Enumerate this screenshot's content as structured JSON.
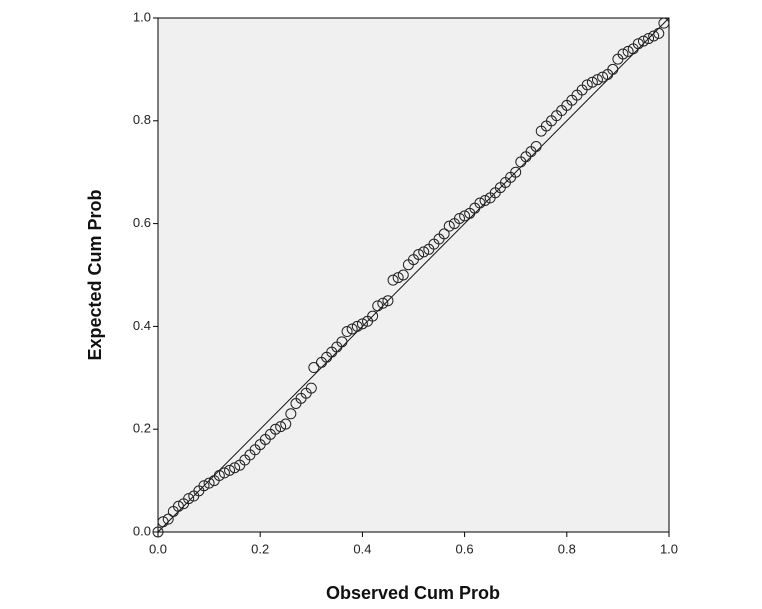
{
  "chart_data": {
    "type": "scatter",
    "x_label": "Observed Cum Prob",
    "y_label": "Expected Cum Prob",
    "xlim": [
      0,
      1
    ],
    "ylim": [
      0,
      1
    ],
    "xticks": [
      {
        "value": 0,
        "label": "0.0"
      },
      0.2,
      0.4,
      0.6,
      0.8,
      {
        "value": 1,
        "label": "1.0"
      }
    ],
    "yticks": [
      {
        "value": 0,
        "label": "0.0"
      },
      0.2,
      0.4,
      0.6,
      0.8,
      {
        "value": 1,
        "label": "1.0"
      }
    ],
    "reference_line": {
      "x": [
        0,
        1
      ],
      "y": [
        0,
        1
      ]
    },
    "x": [
      0,
      0.01,
      0.02,
      0.03,
      0.04,
      0.05,
      0.06,
      0.07,
      0.08,
      0.09,
      0.1,
      0.11,
      0.12,
      0.13,
      0.14,
      0.15,
      0.16,
      0.17,
      0.18,
      0.19,
      0.2,
      0.21,
      0.22,
      0.23,
      0.24,
      0.25,
      0.26,
      0.27,
      0.28,
      0.29,
      0.3,
      0.305,
      0.32,
      0.33,
      0.34,
      0.35,
      0.36,
      0.37,
      0.38,
      0.39,
      0.4,
      0.41,
      0.42,
      0.43,
      0.44,
      0.45,
      0.46,
      0.47,
      0.48,
      0.49,
      0.5,
      0.51,
      0.52,
      0.53,
      0.54,
      0.55,
      0.56,
      0.57,
      0.58,
      0.59,
      0.6,
      0.61,
      0.62,
      0.63,
      0.64,
      0.65,
      0.66,
      0.67,
      0.68,
      0.69,
      0.7,
      0.71,
      0.72,
      0.73,
      0.74,
      0.75,
      0.76,
      0.77,
      0.78,
      0.79,
      0.8,
      0.81,
      0.82,
      0.83,
      0.84,
      0.85,
      0.86,
      0.87,
      0.88,
      0.89,
      0.9,
      0.91,
      0.92,
      0.93,
      0.94,
      0.95,
      0.96,
      0.97,
      0.98,
      0.99
    ],
    "y": [
      0,
      0.02,
      0.025,
      0.04,
      0.05,
      0.055,
      0.065,
      0.07,
      0.08,
      0.09,
      0.095,
      0.1,
      0.11,
      0.115,
      0.12,
      0.125,
      0.13,
      0.14,
      0.15,
      0.16,
      0.17,
      0.18,
      0.19,
      0.2,
      0.205,
      0.21,
      0.23,
      0.25,
      0.26,
      0.27,
      0.28,
      0.32,
      0.33,
      0.34,
      0.35,
      0.36,
      0.37,
      0.39,
      0.395,
      0.4,
      0.405,
      0.41,
      0.42,
      0.44,
      0.445,
      0.45,
      0.49,
      0.495,
      0.5,
      0.52,
      0.53,
      0.54,
      0.545,
      0.55,
      0.56,
      0.57,
      0.58,
      0.595,
      0.6,
      0.61,
      0.615,
      0.62,
      0.63,
      0.64,
      0.645,
      0.65,
      0.66,
      0.67,
      0.68,
      0.69,
      0.7,
      0.72,
      0.73,
      0.74,
      0.75,
      0.78,
      0.79,
      0.8,
      0.81,
      0.82,
      0.83,
      0.84,
      0.85,
      0.86,
      0.87,
      0.875,
      0.88,
      0.885,
      0.89,
      0.9,
      0.92,
      0.93,
      0.935,
      0.94,
      0.95,
      0.955,
      0.96,
      0.965,
      0.97,
      0.99
    ],
    "background": "#f0f0f0",
    "marker_color": "#222222",
    "line_color": "#111111"
  }
}
